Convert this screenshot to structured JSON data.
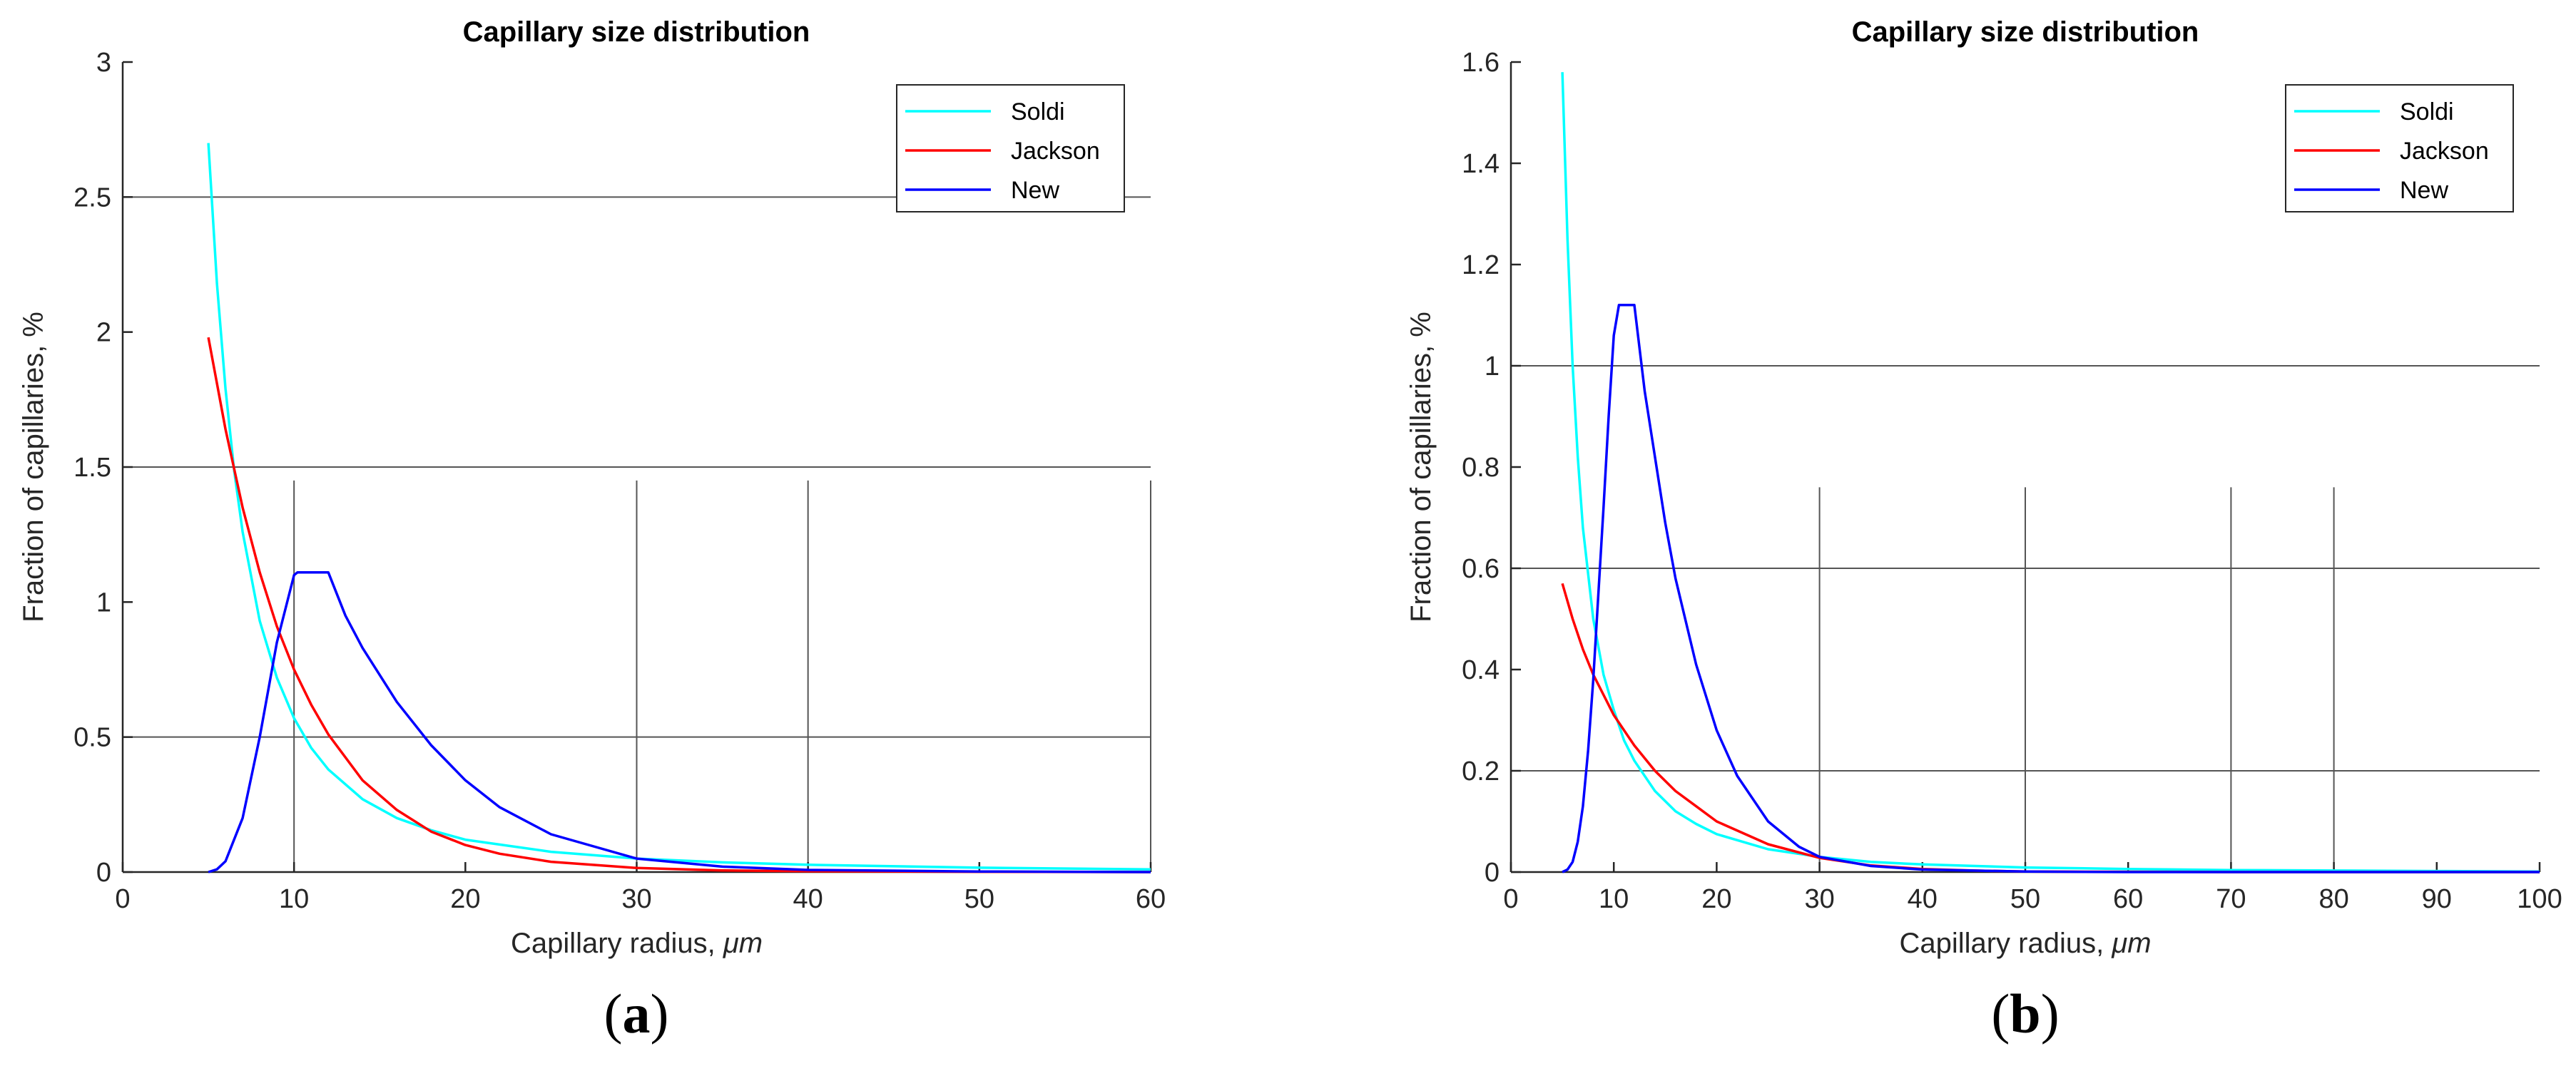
{
  "chart_data": [
    {
      "type": "line",
      "title": "Capillary size distribution",
      "xlabel_prefix": "Capillary radius, ",
      "xlabel_unit": "μm",
      "ylabel": "Fraction of capillaries, %",
      "xlim": [
        0,
        60
      ],
      "ylim": [
        0,
        3
      ],
      "xticks": [
        0,
        10,
        20,
        30,
        40,
        50,
        60
      ],
      "yticks": [
        0,
        0.5,
        1,
        1.5,
        2,
        2.5,
        3
      ],
      "grid_h": [
        0.5,
        1.5,
        2.5
      ],
      "grid_v": [
        10,
        30,
        40,
        60
      ],
      "grid_v_from": 1.45,
      "legend_position": "top-right",
      "panel_label": "a",
      "series": [
        {
          "name": "Soldi",
          "color": "#00ffff",
          "x": [
            5,
            5.5,
            6,
            6.5,
            7,
            8,
            9,
            10,
            11,
            12,
            14,
            16,
            18,
            20,
            25,
            30,
            35,
            40,
            50,
            60
          ],
          "y": [
            2.7,
            2.18,
            1.79,
            1.49,
            1.26,
            0.93,
            0.72,
            0.57,
            0.46,
            0.38,
            0.27,
            0.2,
            0.155,
            0.12,
            0.075,
            0.05,
            0.036,
            0.027,
            0.016,
            0.01
          ]
        },
        {
          "name": "Jackson",
          "color": "#ff0000",
          "x": [
            5,
            6,
            7,
            8,
            9,
            10,
            11,
            12,
            14,
            16,
            18,
            20,
            22,
            25,
            30,
            35,
            40,
            50,
            60
          ],
          "y": [
            1.98,
            1.64,
            1.35,
            1.11,
            0.91,
            0.75,
            0.62,
            0.51,
            0.34,
            0.23,
            0.15,
            0.1,
            0.068,
            0.038,
            0.015,
            0.006,
            0.003,
            0.001,
            0.0
          ]
        },
        {
          "name": "New",
          "color": "#0000ff",
          "x": [
            5,
            5.5,
            6,
            7,
            8,
            9,
            10,
            10.2,
            12,
            13,
            14,
            16,
            18,
            20,
            22,
            25,
            30,
            35,
            40,
            50,
            60
          ],
          "y": [
            0,
            0.01,
            0.04,
            0.2,
            0.5,
            0.85,
            1.1,
            1.11,
            1.11,
            0.95,
            0.83,
            0.63,
            0.47,
            0.34,
            0.24,
            0.14,
            0.05,
            0.02,
            0.008,
            0.002,
            0.0
          ]
        }
      ]
    },
    {
      "type": "line",
      "title": "Capillary size distribution",
      "xlabel_prefix": "Capillary radius, ",
      "xlabel_unit": "μm",
      "ylabel": "Fraction of capillaries, %",
      "xlim": [
        0,
        100
      ],
      "ylim": [
        0,
        1.6
      ],
      "xticks": [
        0,
        10,
        20,
        30,
        40,
        50,
        60,
        70,
        80,
        90,
        100
      ],
      "yticks": [
        0,
        0.2,
        0.4,
        0.6,
        0.8,
        1,
        1.2,
        1.4,
        1.6
      ],
      "grid_h": [
        0.2,
        0.6,
        1.0
      ],
      "grid_v": [
        30,
        50,
        70,
        80
      ],
      "grid_v_from": 0.76,
      "legend_position": "top-right",
      "panel_label": "b",
      "series": [
        {
          "name": "Soldi",
          "color": "#00ffff",
          "x": [
            5,
            5.5,
            6,
            6.5,
            7,
            8,
            9,
            10,
            11,
            12,
            14,
            16,
            18,
            20,
            25,
            30,
            35,
            40,
            50,
            60,
            70,
            80,
            90,
            100
          ],
          "y": [
            1.58,
            1.25,
            1.0,
            0.82,
            0.68,
            0.5,
            0.39,
            0.32,
            0.26,
            0.22,
            0.16,
            0.12,
            0.095,
            0.075,
            0.045,
            0.03,
            0.02,
            0.015,
            0.009,
            0.006,
            0.004,
            0.003,
            0.002,
            0.001
          ]
        },
        {
          "name": "Jackson",
          "color": "#ff0000",
          "x": [
            5,
            6,
            7,
            8,
            9,
            10,
            12,
            14,
            16,
            18,
            20,
            25,
            30,
            35,
            40,
            45,
            50,
            60,
            70,
            80,
            100
          ],
          "y": [
            0.57,
            0.5,
            0.44,
            0.39,
            0.35,
            0.31,
            0.25,
            0.2,
            0.16,
            0.13,
            0.1,
            0.055,
            0.028,
            0.013,
            0.006,
            0.003,
            0.001,
            0.0005,
            0.0,
            0.0,
            0.0
          ]
        },
        {
          "name": "New",
          "color": "#0000ff",
          "x": [
            5,
            5.5,
            6,
            6.5,
            7,
            7.5,
            8,
            8.5,
            9,
            9.5,
            10,
            10.5,
            12,
            13,
            14,
            15,
            16,
            18,
            20,
            22,
            25,
            28,
            30,
            35,
            40,
            50,
            60,
            80,
            100
          ],
          "y": [
            0,
            0.005,
            0.02,
            0.06,
            0.13,
            0.24,
            0.38,
            0.55,
            0.72,
            0.9,
            1.06,
            1.12,
            1.12,
            0.95,
            0.82,
            0.69,
            0.58,
            0.41,
            0.28,
            0.19,
            0.1,
            0.05,
            0.03,
            0.012,
            0.005,
            0.001,
            0.0,
            0.0,
            0.0
          ]
        }
      ]
    }
  ]
}
